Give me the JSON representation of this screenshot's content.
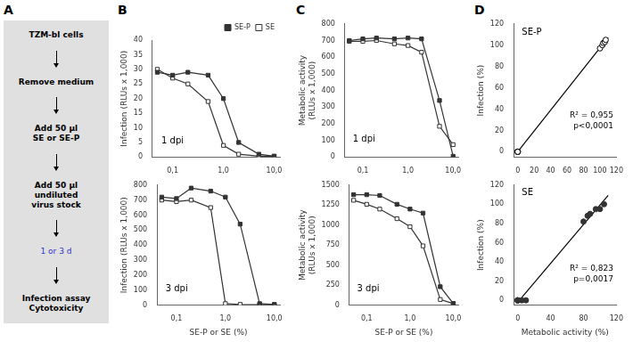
{
  "chart_data": [
    {
      "type": "flowchart",
      "panel": "A",
      "color": "#e0e0e0",
      "steps": [
        {
          "text": "TZM-bl cells"
        },
        {
          "text": "Remove medium"
        },
        {
          "text": "Add 50 μl\nSE or SE-P"
        },
        {
          "text": "Add 50 μl\nundiluted\nvirus stock"
        },
        {
          "text": "1 or 3 d",
          "color": "#3333cc"
        },
        {
          "text": "Infection assay\nCytotoxicity"
        }
      ]
    },
    {
      "type": "line",
      "panel": "B",
      "annotations": [
        "1 dpi"
      ],
      "y_label": "Infection (RLUs x 1,000)",
      "log": "x",
      "x": [
        0.05,
        0.1,
        0.2,
        0.5,
        1.0,
        2.0,
        5.0,
        10.0
      ],
      "series": [
        {
          "name": "SE-P",
          "color": "#333333",
          "marker": "square",
          "values": [
            29,
            28,
            29,
            28,
            20,
            5,
            1,
            0.3
          ]
        },
        {
          "name": "SE",
          "color": "#333333",
          "marker": "square_open",
          "values": [
            30,
            27,
            25,
            19,
            4,
            1,
            0.3,
            0.3
          ]
        }
      ],
      "xlim": [
        0.04,
        13
      ],
      "xticks": [
        {
          "value": 0.1,
          "label": "0,1"
        },
        {
          "value": 1.0,
          "label": "1,0"
        },
        {
          "value": 10.0,
          "label": "10,0"
        }
      ],
      "ylim": [
        0,
        40
      ],
      "yticks": [
        0,
        5,
        10,
        15,
        20,
        25,
        30,
        35,
        40
      ],
      "grid": false,
      "legend": "upper right"
    },
    {
      "type": "line",
      "annotations": [
        "3 dpi"
      ],
      "y_label": "Infection (RLUs x 1,000)",
      "x_label": "SE-P or SE (%)",
      "log": "x",
      "x": [
        0.05,
        0.1,
        0.2,
        0.5,
        1.0,
        2.0,
        5.0,
        10.0
      ],
      "series": [
        {
          "name": "SE-P",
          "color": "#333333",
          "marker": "square",
          "values": [
            720,
            710,
            780,
            760,
            720,
            540,
            10,
            5
          ]
        },
        {
          "name": "SE",
          "color": "#333333",
          "marker": "square_open",
          "values": [
            700,
            690,
            700,
            650,
            10,
            5,
            3,
            3
          ]
        }
      ],
      "xlim": [
        0.04,
        13
      ],
      "xticks": [
        {
          "value": 0.1,
          "label": "0,1"
        },
        {
          "value": 1.0,
          "label": "1,0"
        },
        {
          "value": 10.0,
          "label": "10,0"
        }
      ],
      "ylim": [
        0,
        800
      ],
      "yticks": [
        0,
        100,
        200,
        300,
        400,
        500,
        600,
        700,
        800
      ],
      "grid": false
    },
    {
      "type": "line",
      "panel": "C",
      "annotations": [
        "1 dpi"
      ],
      "y_label": "Metabolic activity\n(RLUs x 1,000)",
      "log": "x",
      "x": [
        0.05,
        0.1,
        0.2,
        0.5,
        1.0,
        2.0,
        5.0,
        10.0
      ],
      "series": [
        {
          "name": "SE-P",
          "color": "#333333",
          "marker": "square",
          "values": [
            700,
            710,
            715,
            710,
            715,
            710,
            340,
            5
          ]
        },
        {
          "name": "SE",
          "color": "#333333",
          "marker": "square_open",
          "values": [
            695,
            695,
            700,
            680,
            670,
            630,
            185,
            75
          ]
        }
      ],
      "xlim": [
        0.04,
        13
      ],
      "xticks": [
        {
          "value": 0.1,
          "label": "0,1"
        },
        {
          "value": 1.0,
          "label": "1,0"
        },
        {
          "value": 10.0,
          "label": "10,0"
        }
      ],
      "ylim": [
        0,
        800
      ],
      "yticks": [
        0,
        100,
        200,
        300,
        400,
        500,
        600,
        700,
        800
      ],
      "grid": false
    },
    {
      "type": "line",
      "annotations": [
        "3 dpi"
      ],
      "y_label": "Metabolic activity\n(RLUs x 1,000)",
      "x_label": "SE-P or SE (%)",
      "log": "x",
      "x": [
        0.05,
        0.1,
        0.2,
        0.5,
        1.0,
        2.0,
        5.0,
        10.0
      ],
      "series": [
        {
          "name": "SE-P",
          "color": "#333333",
          "marker": "square",
          "values": [
            1380,
            1380,
            1370,
            1260,
            1200,
            1150,
            230,
            20
          ]
        },
        {
          "name": "SE",
          "color": "#333333",
          "marker": "square_open",
          "values": [
            1310,
            1260,
            1200,
            1080,
            980,
            740,
            70,
            20
          ]
        }
      ],
      "xlim": [
        0.04,
        13
      ],
      "xticks": [
        {
          "value": 0.1,
          "label": "0,1"
        },
        {
          "value": 1.0,
          "label": "1,0"
        },
        {
          "value": 10.0,
          "label": "10,0"
        }
      ],
      "ylim": [
        0,
        1500
      ],
      "yticks": [
        0,
        250,
        500,
        750,
        1000,
        1250,
        1500
      ],
      "grid": false
    },
    {
      "type": "scatter",
      "panel": "D",
      "annotations": [
        "SE-P",
        "R² = 0,955",
        "p<0,0001"
      ],
      "y_label": "Infection (%)",
      "series": [
        {
          "type": "scatter",
          "color": "#000000",
          "marker": "circle_open",
          "x": [
            0,
            0,
            0,
            0,
            0,
            0,
            100,
            103,
            104,
            106,
            107
          ],
          "values": [
            0,
            0,
            0,
            0,
            0,
            0,
            97,
            100,
            102,
            103,
            105
          ]
        },
        {
          "type": "line",
          "color": "#000000",
          "x": [
            0,
            110
          ],
          "values": [
            -0.006,
            107.258
          ]
        }
      ],
      "xlim": [
        -5,
        120
      ],
      "xticks": [
        0,
        20,
        40,
        60,
        80,
        100,
        120
      ],
      "ylim": [
        -5,
        120
      ],
      "yticks": [
        0,
        20,
        40,
        60,
        80,
        100,
        120
      ],
      "grid": false
    },
    {
      "type": "scatter",
      "annotations": [
        "SE",
        "R² = 0,823",
        "p=0,0017"
      ],
      "y_label": "Infection (%)",
      "x_label": "Metabolic activity (%)",
      "series": [
        {
          "type": "scatter",
          "color": "#333333",
          "marker": "circle",
          "x": [
            0,
            0,
            0,
            0,
            5,
            10,
            80,
            85,
            88,
            95,
            100,
            105
          ],
          "values": [
            0,
            0,
            0,
            0,
            0,
            0,
            82,
            88,
            90,
            95,
            95,
            100
          ]
        },
        {
          "type": "line",
          "color": "#000000",
          "x": [
            0,
            110
          ],
          "values": [
            -2.062,
            109.245
          ]
        }
      ],
      "xlim": [
        -5,
        120
      ],
      "xticks": [
        0,
        40,
        80,
        120
      ],
      "ylim": [
        -5,
        120
      ],
      "yticks": [
        0,
        20,
        40,
        60,
        80,
        100,
        120
      ],
      "grid": false
    }
  ]
}
